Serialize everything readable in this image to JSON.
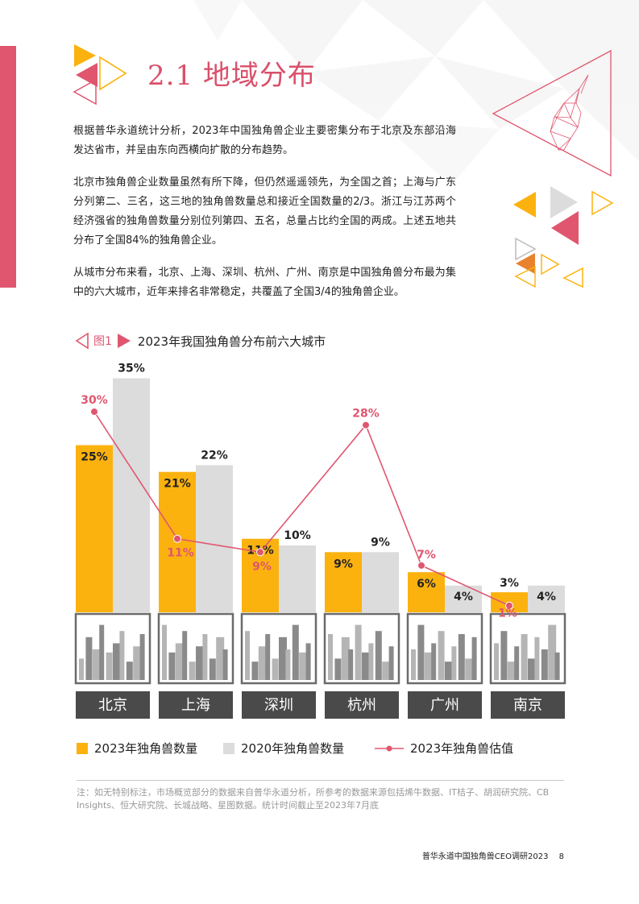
{
  "heading": {
    "number": "2.1",
    "text": "地域分布"
  },
  "paragraphs": [
    "根据普华永道统计分析，2023年中国独角兽企业主要密集分布于北京及东部沿海发达省市，并呈由东向西横向扩散的分布趋势。",
    "北京市独角兽企业数量虽然有所下降，但仍然遥遥领先，为全国之首；上海与广东分列第二、三名，这三地的独角兽数量总和接近全国数量的2/3。浙江与江苏两个经济强省的独角兽数量分别位列第四、五名，总量占比约全国的两成。上述五地共分布了全国84%的独角兽企业。",
    "从城市分布来看，北京、上海、深圳、杭州、广州、南京是中国独角兽分布最为集中的六大城市，近年来排名非常稳定，共覆盖了全国3/4的独角兽企业。"
  ],
  "figure": {
    "label": "图1",
    "title": "2023年我国独角兽分布前六大城市"
  },
  "chart_data": {
    "type": "bar",
    "categories": [
      "北京",
      "上海",
      "深圳",
      "杭州",
      "广州",
      "南京"
    ],
    "series": [
      {
        "name": "2023年独角兽数量",
        "type": "bar",
        "color": "#fbb20f",
        "values": [
          25,
          21,
          11,
          9,
          6,
          3
        ],
        "labels": [
          "25%",
          "21%",
          "11%",
          "9%",
          "6%",
          "3%"
        ]
      },
      {
        "name": "2020年独角兽数量",
        "type": "bar",
        "color": "#dcdcdc",
        "values": [
          35,
          22,
          10,
          9,
          4,
          4
        ],
        "labels": [
          "35%",
          "22%",
          "10%",
          "9%",
          "4%",
          "4%"
        ]
      },
      {
        "name": "2023年独角兽估值",
        "type": "line",
        "color": "#e0566f",
        "values": [
          30,
          11,
          9,
          28,
          7,
          1
        ],
        "labels": [
          "30%",
          "11%",
          "9%",
          "28%",
          "7%",
          "1%"
        ]
      }
    ],
    "unit": "%",
    "ylim": [
      0,
      40
    ],
    "grid": false,
    "legend": "bottom"
  },
  "colors": {
    "accent": "#e0566f",
    "bar2023": "#fbb20f",
    "bar2020": "#dcdcdc",
    "city_block": "#4a4a4a"
  },
  "note": "注：如无特别标注，市场概览部分的数据来自普华永道分析，所参考的数据来源包括烯牛数据、IT桔子、胡润研究院、CB Insights、恒大研究院、长城战略、星图数据。统计时间截止至2023年7月底",
  "footer": {
    "text": "普华永道中国独角兽CEO调研2023",
    "page": "8"
  }
}
